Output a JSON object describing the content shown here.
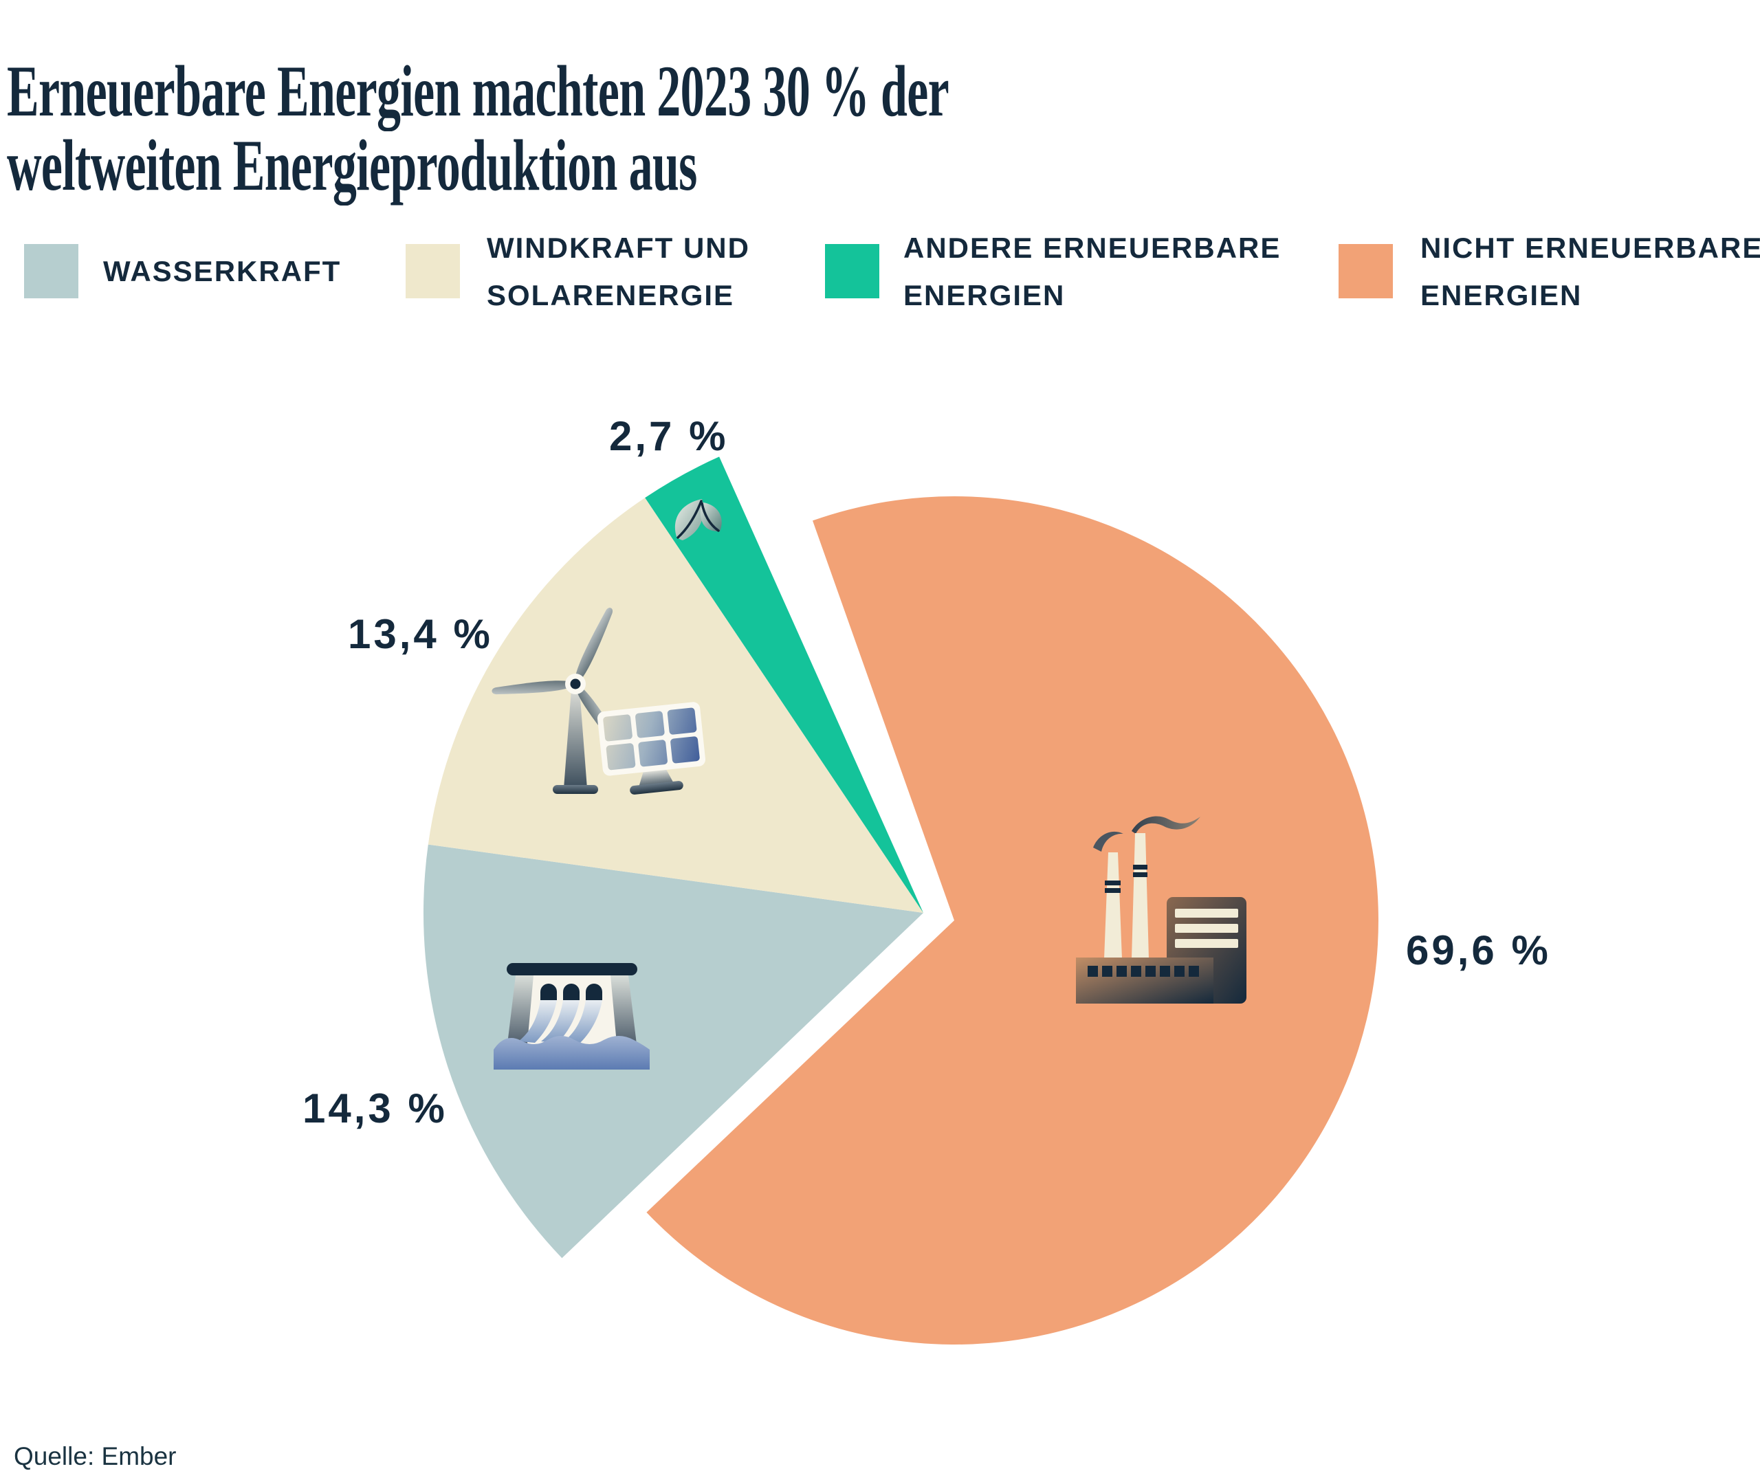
{
  "title": {
    "line1": "Erneuerbare Energien machten 2023 30 % der",
    "line2": "weltweiten Energieproduktion aus"
  },
  "source": "Quelle: Ember",
  "colors": {
    "navy_text": "#14293C",
    "background": "#FFFFFF",
    "wasserkraft": "#B6CECF",
    "windkraft_solar": "#EFE8CC",
    "andere_erneuerbare": "#14C39A",
    "nicht_erneuerbare": "#F2A276"
  },
  "legend": [
    {
      "lines": [
        "WASSERKRAFT",
        ""
      ]
    },
    {
      "lines": [
        "WINDKRAFT UND",
        "SOLARENERGIE"
      ]
    },
    {
      "lines": [
        "ANDERE ERNEUERBARE",
        "ENERGIEN"
      ]
    },
    {
      "lines": [
        "NICHT ERNEUERBARE",
        "ENERGIEN"
      ]
    }
  ],
  "chart_data": {
    "type": "pie",
    "title": "Erneuerbare Energien machten 2023 30 % der weltweiten Energieproduktion aus",
    "slices": [
      {
        "id": "wasserkraft",
        "name": "Wasserkraft",
        "value": 14.3,
        "label": "14,3 %",
        "color": "#B6CECF",
        "icon": "hydro-dam"
      },
      {
        "id": "windkraft-solar",
        "name": "Windkraft und Solarenergie",
        "value": 13.4,
        "label": "13,4 %",
        "color": "#EFE8CC",
        "icon": "wind-turbine-and-solar-panel"
      },
      {
        "id": "andere-erneuerbare",
        "name": "Andere erneuerbare Energien",
        "value": 2.7,
        "label": "2,7 %",
        "color": "#14C39A",
        "icon": "leaf"
      },
      {
        "id": "nicht-erneuerbare",
        "name": "Nicht erneuerbare Energien",
        "value": 69.6,
        "label": "69,6 %",
        "color": "#F2A276",
        "icon": "factory"
      }
    ],
    "total_renewable_share_percent": 30.4,
    "layout": {
      "legend_position": "top",
      "exploded_slice": "nicht-erneuerbare",
      "label_decimal_separator": ","
    }
  }
}
